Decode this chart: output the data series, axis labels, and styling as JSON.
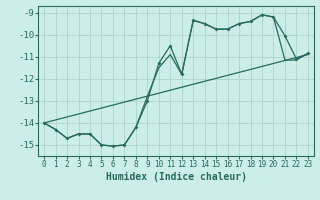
{
  "xlabel": "Humidex (Indice chaleur)",
  "bg_color": "#cceee8",
  "grid_color": "#aad4cc",
  "line_color": "#2a6860",
  "xlim": [
    -0.5,
    23.5
  ],
  "ylim": [
    -15.5,
    -8.7
  ],
  "yticks": [
    -15,
    -14,
    -13,
    -12,
    -11,
    -10,
    -9
  ],
  "xticks": [
    0,
    1,
    2,
    3,
    4,
    5,
    6,
    7,
    8,
    9,
    10,
    11,
    12,
    13,
    14,
    15,
    16,
    17,
    18,
    19,
    20,
    21,
    22,
    23
  ],
  "curve_x": [
    0,
    1,
    2,
    3,
    4,
    5,
    6,
    7,
    8,
    9,
    10,
    11,
    12,
    13,
    14,
    15,
    16,
    17,
    18,
    19,
    20,
    21,
    22,
    23
  ],
  "curve1_y": [
    -14.0,
    -14.3,
    -14.7,
    -14.5,
    -14.5,
    -15.0,
    -15.05,
    -15.0,
    -14.2,
    -13.0,
    -11.3,
    -10.5,
    -11.8,
    -9.35,
    -9.5,
    -9.75,
    -9.75,
    -9.5,
    -9.4,
    -9.1,
    -9.2,
    -10.05,
    -11.1,
    -10.85
  ],
  "curve2_y": [
    -14.0,
    -14.3,
    -14.7,
    -14.5,
    -14.5,
    -15.0,
    -15.05,
    -15.0,
    -14.2,
    -12.8,
    -11.5,
    -10.9,
    -11.8,
    -9.35,
    -9.5,
    -9.75,
    -9.75,
    -9.5,
    -9.4,
    -9.1,
    -9.2,
    -11.15,
    -11.15,
    -10.85
  ],
  "trend_x": [
    0,
    23
  ],
  "trend_y": [
    -14.0,
    -10.9
  ]
}
